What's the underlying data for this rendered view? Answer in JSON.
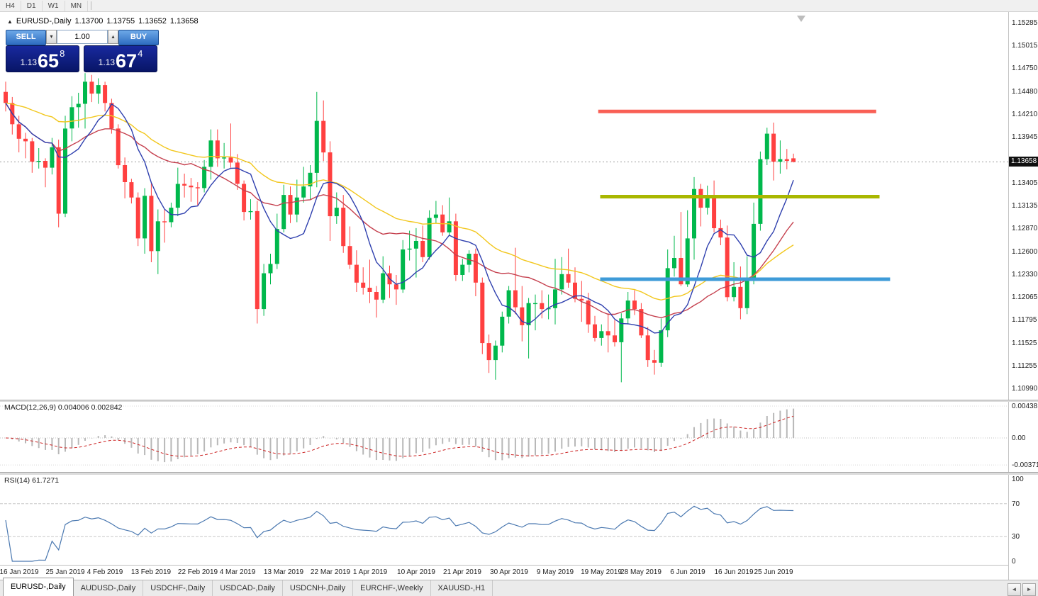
{
  "icons": {
    "collapse": "▲",
    "vol_down": "▾",
    "vol_up": "▴",
    "tab_prev": "◄",
    "tab_next": "►"
  },
  "toolbar": {
    "periods": [
      "H4",
      "D1",
      "W1",
      "MN"
    ]
  },
  "header": {
    "symbol": "EURUSD-,Daily",
    "open": "1.13700",
    "high": "1.13755",
    "low": "1.13652",
    "close": "1.13658"
  },
  "trade_panel": {
    "sell_label": "SELL",
    "buy_label": "BUY",
    "volume": "1.00",
    "sell_price": {
      "prefix": "1.13",
      "big": "65",
      "sup": "8"
    },
    "buy_price": {
      "prefix": "1.13",
      "big": "67",
      "sup": "4"
    }
  },
  "indicators": {
    "macd": {
      "label": "MACD(12,26,9)",
      "value1": "0.004006",
      "value2": "0.002842",
      "axis": [
        "0.00438",
        "0.00",
        "-0.003711"
      ]
    },
    "rsi": {
      "label": "RSI(14)",
      "value": "61.7271",
      "axis": [
        "100",
        "70",
        "30",
        "0"
      ],
      "levels": [
        70,
        30
      ]
    }
  },
  "tabs": {
    "items": [
      {
        "label": "EURUSD-,Daily",
        "active": true
      },
      {
        "label": "AUDUSD-,Daily",
        "active": false
      },
      {
        "label": "USDCHF-,Daily",
        "active": false
      },
      {
        "label": "USDCAD-,Daily",
        "active": false
      },
      {
        "label": "USDCNH-,Daily",
        "active": false
      },
      {
        "label": "EURCHF-,Weekly",
        "active": false
      },
      {
        "label": "XAUUSD-,H1",
        "active": false
      }
    ]
  },
  "chart_data": {
    "type": "candlestick",
    "symbol": "EURUSD-,Daily",
    "current_price": 1.13658,
    "current_price_label": "1.13658",
    "ylim": [
      1.10898,
      1.15393
    ],
    "price_axis_labels": [
      "1.15285",
      "1.15015",
      "1.14750",
      "1.14480",
      "1.14210",
      "1.13945",
      "1.13405",
      "1.13135",
      "1.12870",
      "1.12600",
      "1.12330",
      "1.12065",
      "1.11795",
      "1.11525",
      "1.11255",
      "1.10990"
    ],
    "colors": {
      "up": "#00b84c",
      "down": "#ff4040",
      "ma_fast": "#2e3fae",
      "ma_mid": "#c5404e",
      "ma_slow": "#f2c71d",
      "macd_hist": "#b8b8b8",
      "macd_signal": "#cc2222",
      "rsi_line": "#4a78b0",
      "hline_red": "#f95f55",
      "hline_olive": "#a9b700",
      "hline_blue": "#3e9bd8"
    },
    "moving_averages": [
      {
        "type": "sma",
        "period": 8,
        "color": "#2e3fae"
      },
      {
        "type": "sma",
        "period": 20,
        "color": "#c5404e"
      },
      {
        "type": "ema",
        "period": 40,
        "color": "#f2c71d"
      }
    ],
    "hlines": [
      {
        "price": 1.1425,
        "i1": 89.5,
        "i2": 131.5,
        "color": "#f95f55",
        "width": 5
      },
      {
        "price": 1.1325,
        "i1": 89.8,
        "i2": 132.0,
        "color": "#a9b700",
        "width": 5
      },
      {
        "price": 1.1228,
        "i1": 89.8,
        "i2": 133.6,
        "color": "#3e9bd8",
        "width": 5
      }
    ],
    "x_labels": [
      [
        2,
        "16 Jan 2019"
      ],
      [
        9,
        "25 Jan 2019"
      ],
      [
        15,
        "4 Feb 2019"
      ],
      [
        22,
        "13 Feb 2019"
      ],
      [
        29,
        "22 Feb 2019"
      ],
      [
        35,
        "4 Mar 2019"
      ],
      [
        42,
        "13 Mar 2019"
      ],
      [
        49,
        "22 Mar 2019"
      ],
      [
        55,
        "1 Apr 2019"
      ],
      [
        62,
        "10 Apr 2019"
      ],
      [
        69,
        "21 Apr 2019"
      ],
      [
        76,
        "30 Apr 2019"
      ],
      [
        83,
        "9 May 2019"
      ],
      [
        90,
        "19 May 2019"
      ],
      [
        96,
        "28 May 2019"
      ],
      [
        103,
        "6 Jun 2019"
      ],
      [
        110,
        "16 Jun 2019"
      ],
      [
        116,
        "25 Jun 2019"
      ]
    ],
    "candles": [
      [
        1.1448,
        1.146,
        1.1425,
        1.1435
      ],
      [
        1.1435,
        1.1442,
        1.1398,
        1.141
      ],
      [
        1.141,
        1.142,
        1.1377,
        1.1393
      ],
      [
        1.1393,
        1.14,
        1.137,
        1.139
      ],
      [
        1.139,
        1.1394,
        1.1353,
        1.1366
      ],
      [
        1.1366,
        1.1382,
        1.1358,
        1.1367
      ],
      [
        1.1367,
        1.137,
        1.1336,
        1.1359
      ],
      [
        1.1359,
        1.1394,
        1.1351,
        1.1383
      ],
      [
        1.1383,
        1.1392,
        1.1289,
        1.1305
      ],
      [
        1.1305,
        1.142,
        1.1301,
        1.1405
      ],
      [
        1.1405,
        1.1443,
        1.139,
        1.143
      ],
      [
        1.143,
        1.1447,
        1.1406,
        1.1434
      ],
      [
        1.1434,
        1.147,
        1.1405,
        1.146
      ],
      [
        1.146,
        1.1468,
        1.1436,
        1.1446
      ],
      [
        1.1446,
        1.1464,
        1.1434,
        1.1456
      ],
      [
        1.1456,
        1.146,
        1.1425,
        1.1435
      ],
      [
        1.1435,
        1.144,
        1.1399,
        1.1405
      ],
      [
        1.1405,
        1.141,
        1.1358,
        1.1362
      ],
      [
        1.1362,
        1.1371,
        1.1323,
        1.1342
      ],
      [
        1.1342,
        1.1346,
        1.1317,
        1.1324
      ],
      [
        1.1324,
        1.133,
        1.1267,
        1.1276
      ],
      [
        1.1276,
        1.1335,
        1.1258,
        1.1326
      ],
      [
        1.1326,
        1.1341,
        1.1248,
        1.1261
      ],
      [
        1.1261,
        1.131,
        1.1234,
        1.1296
      ],
      [
        1.1296,
        1.131,
        1.1271,
        1.1295
      ],
      [
        1.1295,
        1.1318,
        1.1289,
        1.1312
      ],
      [
        1.1312,
        1.1359,
        1.1302,
        1.134
      ],
      [
        1.134,
        1.1352,
        1.1324,
        1.1338
      ],
      [
        1.1338,
        1.1347,
        1.1319,
        1.1336
      ],
      [
        1.1336,
        1.1342,
        1.1315,
        1.1335
      ],
      [
        1.1335,
        1.1368,
        1.133,
        1.136
      ],
      [
        1.136,
        1.1404,
        1.1345,
        1.1391
      ],
      [
        1.1391,
        1.1404,
        1.136,
        1.137
      ],
      [
        1.137,
        1.1388,
        1.1358,
        1.1371
      ],
      [
        1.1371,
        1.1411,
        1.1359,
        1.1365
      ],
      [
        1.1365,
        1.1375,
        1.1333,
        1.134
      ],
      [
        1.134,
        1.1344,
        1.1297,
        1.1307
      ],
      [
        1.1307,
        1.1322,
        1.1298,
        1.1308
      ],
      [
        1.1308,
        1.132,
        1.1176,
        1.1193
      ],
      [
        1.1193,
        1.1246,
        1.1185,
        1.1235
      ],
      [
        1.1235,
        1.1258,
        1.1222,
        1.1246
      ],
      [
        1.1246,
        1.1305,
        1.124,
        1.1287
      ],
      [
        1.1287,
        1.1339,
        1.1283,
        1.1327
      ],
      [
        1.1327,
        1.1337,
        1.1294,
        1.1304
      ],
      [
        1.1304,
        1.1345,
        1.1295,
        1.1324
      ],
      [
        1.1324,
        1.136,
        1.1318,
        1.1337
      ],
      [
        1.1337,
        1.1362,
        1.1322,
        1.1353
      ],
      [
        1.1353,
        1.1448,
        1.1336,
        1.1414
      ],
      [
        1.1414,
        1.1438,
        1.1367,
        1.1377
      ],
      [
        1.1377,
        1.139,
        1.1273,
        1.1302
      ],
      [
        1.1302,
        1.133,
        1.1293,
        1.1312
      ],
      [
        1.1312,
        1.1327,
        1.1259,
        1.1267
      ],
      [
        1.1267,
        1.129,
        1.124,
        1.1245
      ],
      [
        1.1245,
        1.1262,
        1.1213,
        1.1224
      ],
      [
        1.1224,
        1.1242,
        1.121,
        1.1218
      ],
      [
        1.1218,
        1.1251,
        1.12,
        1.1213
      ],
      [
        1.1213,
        1.122,
        1.1183,
        1.1204
      ],
      [
        1.1204,
        1.1255,
        1.12,
        1.1235
      ],
      [
        1.1235,
        1.1244,
        1.1206,
        1.1222
      ],
      [
        1.1222,
        1.1233,
        1.1198,
        1.1216
      ],
      [
        1.1216,
        1.1274,
        1.1212,
        1.1263
      ],
      [
        1.1263,
        1.1285,
        1.125,
        1.1264
      ],
      [
        1.1264,
        1.1288,
        1.123,
        1.1273
      ],
      [
        1.1273,
        1.1291,
        1.1248,
        1.1254
      ],
      [
        1.1254,
        1.1309,
        1.1251,
        1.13
      ],
      [
        1.13,
        1.132,
        1.1294,
        1.1304
      ],
      [
        1.1304,
        1.1315,
        1.1279,
        1.1283
      ],
      [
        1.1283,
        1.1324,
        1.128,
        1.1296
      ],
      [
        1.1296,
        1.1305,
        1.1226,
        1.1233
      ],
      [
        1.1233,
        1.1252,
        1.1226,
        1.1245
      ],
      [
        1.1245,
        1.1262,
        1.1236,
        1.1258
      ],
      [
        1.1258,
        1.1264,
        1.1208,
        1.1224
      ],
      [
        1.1224,
        1.123,
        1.114,
        1.1153
      ],
      [
        1.1153,
        1.1163,
        1.1118,
        1.1133
      ],
      [
        1.1133,
        1.1156,
        1.111,
        1.115
      ],
      [
        1.115,
        1.119,
        1.1142,
        1.1184
      ],
      [
        1.1184,
        1.122,
        1.1176,
        1.1215
      ],
      [
        1.1215,
        1.1265,
        1.1187,
        1.1195
      ],
      [
        1.1195,
        1.122,
        1.1155,
        1.1174
      ],
      [
        1.1174,
        1.1206,
        1.1135,
        1.12
      ],
      [
        1.12,
        1.121,
        1.1168,
        1.12
      ],
      [
        1.12,
        1.1215,
        1.1182,
        1.1193
      ],
      [
        1.1193,
        1.121,
        1.1181,
        1.1194
      ],
      [
        1.1194,
        1.1252,
        1.1175,
        1.1216
      ],
      [
        1.1216,
        1.1254,
        1.121,
        1.1234
      ],
      [
        1.1234,
        1.1264,
        1.1218,
        1.1224
      ],
      [
        1.1224,
        1.1242,
        1.1201,
        1.1205
      ],
      [
        1.1205,
        1.1226,
        1.1178,
        1.1203
      ],
      [
        1.1203,
        1.1212,
        1.1165,
        1.1175
      ],
      [
        1.1175,
        1.1185,
        1.1155,
        1.1159
      ],
      [
        1.1159,
        1.1175,
        1.115,
        1.1167
      ],
      [
        1.1167,
        1.1188,
        1.1142,
        1.1162
      ],
      [
        1.1162,
        1.118,
        1.1149,
        1.1154
      ],
      [
        1.1154,
        1.1188,
        1.1107,
        1.1182
      ],
      [
        1.1182,
        1.1213,
        1.1175,
        1.1203
      ],
      [
        1.1203,
        1.1215,
        1.1186,
        1.1193
      ],
      [
        1.1193,
        1.12,
        1.1159,
        1.1162
      ],
      [
        1.1162,
        1.1172,
        1.1125,
        1.1133
      ],
      [
        1.1133,
        1.1145,
        1.1116,
        1.113
      ],
      [
        1.113,
        1.1182,
        1.1125,
        1.1168
      ],
      [
        1.1168,
        1.1263,
        1.116,
        1.1241
      ],
      [
        1.1241,
        1.1279,
        1.1231,
        1.1253
      ],
      [
        1.1253,
        1.1307,
        1.122,
        1.1222
      ],
      [
        1.1222,
        1.1309,
        1.1219,
        1.1276
      ],
      [
        1.1276,
        1.1348,
        1.1251,
        1.1334
      ],
      [
        1.1334,
        1.134,
        1.129,
        1.1312
      ],
      [
        1.1312,
        1.1338,
        1.1304,
        1.1327
      ],
      [
        1.1327,
        1.1344,
        1.1283,
        1.1288
      ],
      [
        1.1288,
        1.1298,
        1.1268,
        1.1277
      ],
      [
        1.1277,
        1.1291,
        1.1202,
        1.1207
      ],
      [
        1.1207,
        1.1248,
        1.1202,
        1.1219
      ],
      [
        1.1219,
        1.1243,
        1.1181,
        1.1194
      ],
      [
        1.1194,
        1.1255,
        1.1187,
        1.1226
      ],
      [
        1.1226,
        1.1318,
        1.1222,
        1.1293
      ],
      [
        1.1293,
        1.1378,
        1.1285,
        1.1369
      ],
      [
        1.1369,
        1.1406,
        1.1362,
        1.1399
      ],
      [
        1.1399,
        1.1412,
        1.1344,
        1.1366
      ],
      [
        1.1366,
        1.1391,
        1.1352,
        1.1369
      ],
      [
        1.1369,
        1.1381,
        1.1357,
        1.1367
      ],
      [
        1.137,
        1.13755,
        1.13652,
        1.13658
      ]
    ],
    "macd_axis_values": [
      0.00438,
      0,
      -0.003711
    ],
    "rsi_axis_values": [
      100,
      70,
      30,
      0
    ]
  }
}
